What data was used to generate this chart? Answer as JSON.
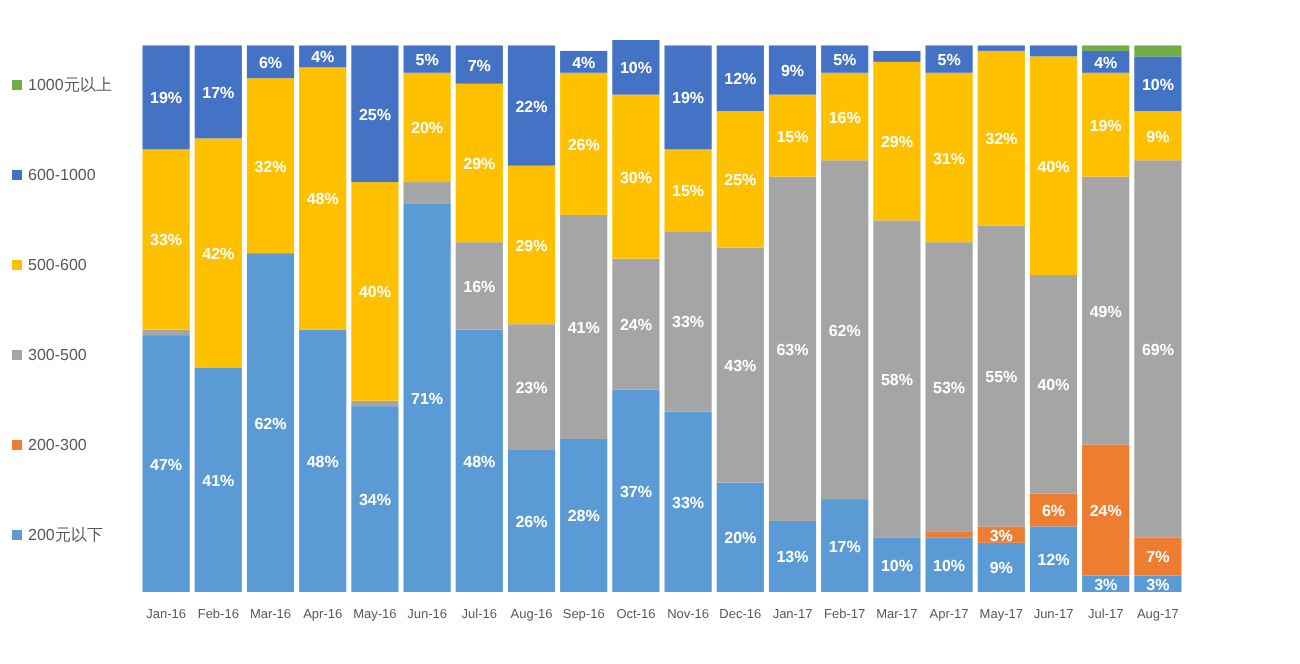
{
  "chart_data": {
    "type": "bar",
    "stacked": true,
    "legend": "left",
    "ylim": [
      0,
      101
    ],
    "categories": [
      "Jan-16",
      "Feb-16",
      "Mar-16",
      "Apr-16",
      "May-16",
      "Jun-16",
      "Jul-16",
      "Aug-16",
      "Sep-16",
      "Oct-16",
      "Nov-16",
      "Dec-16",
      "Jan-17",
      "Feb-17",
      "Mar-17",
      "Apr-17",
      "May-17",
      "Jun-17",
      "Jul-17",
      "Aug-17"
    ],
    "series": [
      {
        "name": "200元以下",
        "color": "#5b9bd5",
        "values": [
          47,
          41,
          62,
          48,
          34,
          71,
          48,
          26,
          28,
          37,
          33,
          20,
          13,
          17,
          10,
          10,
          9,
          12,
          3,
          3
        ],
        "value_labels": [
          "47%",
          "41%",
          "62%",
          "48%",
          "34%",
          "71%",
          "48%",
          "26%",
          "28%",
          "37%",
          "33%",
          "20%",
          "13%",
          "17%",
          "10%",
          "10%",
          "9%",
          "12%",
          "3%",
          "3%"
        ]
      },
      {
        "name": "200-300",
        "color": "#ed7d31",
        "values": [
          0,
          0,
          0,
          0,
          0,
          0,
          0,
          0,
          0,
          0,
          0,
          0,
          0,
          0,
          0,
          1,
          3,
          6,
          24,
          7
        ],
        "value_labels": [
          null,
          null,
          null,
          null,
          null,
          null,
          null,
          null,
          null,
          null,
          null,
          null,
          null,
          null,
          null,
          null,
          "3%",
          "6%",
          "24%",
          "7%"
        ]
      },
      {
        "name": "300-500",
        "color": "#a5a5a5",
        "values": [
          1,
          0,
          0,
          0,
          1,
          4,
          16,
          23,
          41,
          24,
          33,
          43,
          63,
          62,
          58,
          53,
          55,
          40,
          49,
          69
        ],
        "value_labels": [
          null,
          null,
          null,
          null,
          null,
          null,
          "16%",
          "23%",
          "41%",
          "24%",
          "33%",
          "43%",
          "63%",
          "62%",
          "58%",
          "53%",
          "55%",
          "40%",
          "49%",
          "69%"
        ]
      },
      {
        "name": "500-600",
        "color": "#ffc000",
        "values": [
          33,
          42,
          32,
          48,
          40,
          20,
          29,
          29,
          26,
          30,
          15,
          25,
          15,
          16,
          29,
          31,
          32,
          40,
          19,
          9
        ],
        "value_labels": [
          "33%",
          "42%",
          "32%",
          "48%",
          "40%",
          "20%",
          "29%",
          "29%",
          "26%",
          "30%",
          "15%",
          "25%",
          "15%",
          "16%",
          "29%",
          "31%",
          "32%",
          "40%",
          "19%",
          "9%"
        ]
      },
      {
        "name": "600-1000",
        "color": "#4472c4",
        "values": [
          19,
          17,
          6,
          4,
          25,
          5,
          7,
          22,
          4,
          10,
          19,
          12,
          9,
          5,
          2,
          5,
          1,
          2,
          4,
          10
        ],
        "value_labels": [
          "19%",
          "17%",
          "6%",
          "4%",
          "25%",
          "5%",
          "7%",
          "22%",
          "4%",
          "10%",
          "19%",
          "12%",
          "9%",
          "5%",
          null,
          "5%",
          null,
          null,
          "4%",
          "10%"
        ]
      },
      {
        "name": "1000元以上",
        "color": "#70ad47",
        "values": [
          0,
          0,
          0,
          0,
          0,
          0,
          0,
          0,
          0,
          0,
          0,
          0,
          0,
          0,
          0,
          0,
          0,
          0,
          1,
          2
        ],
        "value_labels": [
          null,
          null,
          null,
          null,
          null,
          null,
          null,
          null,
          null,
          null,
          null,
          null,
          null,
          null,
          null,
          null,
          null,
          null,
          null,
          null
        ]
      }
    ]
  }
}
